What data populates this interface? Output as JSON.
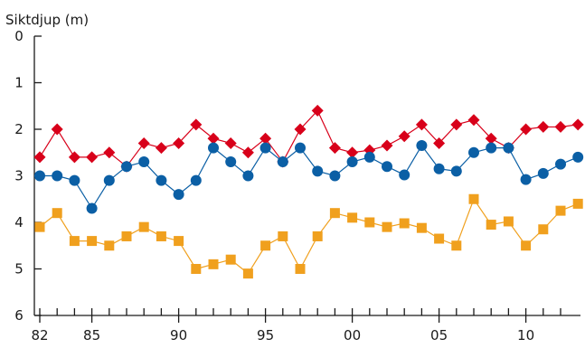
{
  "chart_data": {
    "type": "line",
    "title": "",
    "ylabel": "Siktdjup (m)",
    "xlabel": "",
    "ylim": [
      0,
      6
    ],
    "y_inverted": true,
    "grid": false,
    "x_range": [
      1982,
      2013
    ],
    "x_ticks": [
      1982,
      1983,
      1984,
      1985,
      1986,
      1987,
      1988,
      1989,
      1990,
      1991,
      1992,
      1993,
      1994,
      1995,
      1996,
      1997,
      1998,
      1999,
      2000,
      2001,
      2002,
      2003,
      2004,
      2005,
      2006,
      2007,
      2008,
      2009,
      2010,
      2011,
      2012
    ],
    "x_tick_labels": [
      {
        "year": 1982,
        "label": "82"
      },
      {
        "year": 1985,
        "label": "85"
      },
      {
        "year": 1990,
        "label": "90"
      },
      {
        "year": 1995,
        "label": "95"
      },
      {
        "year": 2000,
        "label": "00"
      },
      {
        "year": 2005,
        "label": "05"
      },
      {
        "year": 2010,
        "label": "10"
      }
    ],
    "y_ticks": [
      {
        "value": 0,
        "label": "0"
      },
      {
        "value": 1,
        "label": "1"
      },
      {
        "value": 2,
        "label": "2"
      },
      {
        "value": 3,
        "label": "3"
      },
      {
        "value": 4,
        "label": "4"
      },
      {
        "value": 5,
        "label": "5"
      },
      {
        "value": 6,
        "label": "6"
      }
    ],
    "series": [
      {
        "color": "#d8001a",
        "marker": "diamond",
        "points": [
          [
            1982,
            2.6
          ],
          [
            1983,
            2.0
          ],
          [
            1984,
            2.6
          ],
          [
            1985,
            2.6
          ],
          [
            1986,
            2.5
          ],
          [
            1987,
            2.8
          ],
          [
            1988,
            2.3
          ],
          [
            1989,
            2.4
          ],
          [
            1990,
            2.3
          ],
          [
            1991,
            1.9
          ],
          [
            1992,
            2.2
          ],
          [
            1993,
            2.3
          ],
          [
            1994,
            2.5
          ],
          [
            1995,
            2.2
          ],
          [
            1996,
            2.7
          ],
          [
            1997,
            2.0
          ],
          [
            1998,
            1.6
          ],
          [
            1999,
            2.4
          ],
          [
            2000,
            2.5
          ],
          [
            2001,
            2.45
          ],
          [
            2002,
            2.35
          ],
          [
            2003,
            2.15
          ],
          [
            2004,
            1.9
          ],
          [
            2005,
            2.3
          ],
          [
            2006,
            1.9
          ],
          [
            2007,
            1.8
          ],
          [
            2008,
            2.2
          ],
          [
            2009,
            2.4
          ],
          [
            2010,
            2.0
          ],
          [
            2011,
            1.95
          ],
          [
            2012,
            1.95
          ],
          [
            2013,
            1.9
          ]
        ]
      },
      {
        "color": "#0b5fa5",
        "marker": "circle",
        "points": [
          [
            1982,
            3.0
          ],
          [
            1983,
            3.0
          ],
          [
            1984,
            3.1
          ],
          [
            1985,
            3.7
          ],
          [
            1986,
            3.1
          ],
          [
            1987,
            2.8
          ],
          [
            1988,
            2.7
          ],
          [
            1989,
            3.1
          ],
          [
            1990,
            3.4
          ],
          [
            1991,
            3.1
          ],
          [
            1992,
            2.4
          ],
          [
            1993,
            2.7
          ],
          [
            1994,
            3.0
          ],
          [
            1995,
            2.4
          ],
          [
            1996,
            2.7
          ],
          [
            1997,
            2.4
          ],
          [
            1998,
            2.9
          ],
          [
            1999,
            3.0
          ],
          [
            2000,
            2.7
          ],
          [
            2001,
            2.6
          ],
          [
            2002,
            2.8
          ],
          [
            2003,
            2.98
          ],
          [
            2004,
            2.35
          ],
          [
            2005,
            2.85
          ],
          [
            2006,
            2.9
          ],
          [
            2007,
            2.5
          ],
          [
            2008,
            2.4
          ],
          [
            2009,
            2.4
          ],
          [
            2010,
            3.08
          ],
          [
            2011,
            2.95
          ],
          [
            2012,
            2.75
          ],
          [
            2013,
            2.6
          ]
        ]
      },
      {
        "color": "#f0a01e",
        "marker": "square",
        "points": [
          [
            1982,
            4.1
          ],
          [
            1983,
            3.8
          ],
          [
            1984,
            4.4
          ],
          [
            1985,
            4.4
          ],
          [
            1986,
            4.5
          ],
          [
            1987,
            4.3
          ],
          [
            1988,
            4.1
          ],
          [
            1989,
            4.3
          ],
          [
            1990,
            4.4
          ],
          [
            1991,
            5.0
          ],
          [
            1992,
            4.9
          ],
          [
            1993,
            4.8
          ],
          [
            1994,
            5.1
          ],
          [
            1995,
            4.5
          ],
          [
            1996,
            4.3
          ],
          [
            1997,
            5.0
          ],
          [
            1998,
            4.3
          ],
          [
            1999,
            3.8
          ],
          [
            2000,
            3.9
          ],
          [
            2001,
            4.0
          ],
          [
            2002,
            4.1
          ],
          [
            2003,
            4.02
          ],
          [
            2004,
            4.12
          ],
          [
            2005,
            4.35
          ],
          [
            2006,
            4.5
          ],
          [
            2007,
            3.5
          ],
          [
            2008,
            4.05
          ],
          [
            2009,
            3.98
          ],
          [
            2010,
            4.5
          ],
          [
            2011,
            4.15
          ],
          [
            2012,
            3.75
          ],
          [
            2013,
            3.6
          ]
        ]
      }
    ]
  }
}
